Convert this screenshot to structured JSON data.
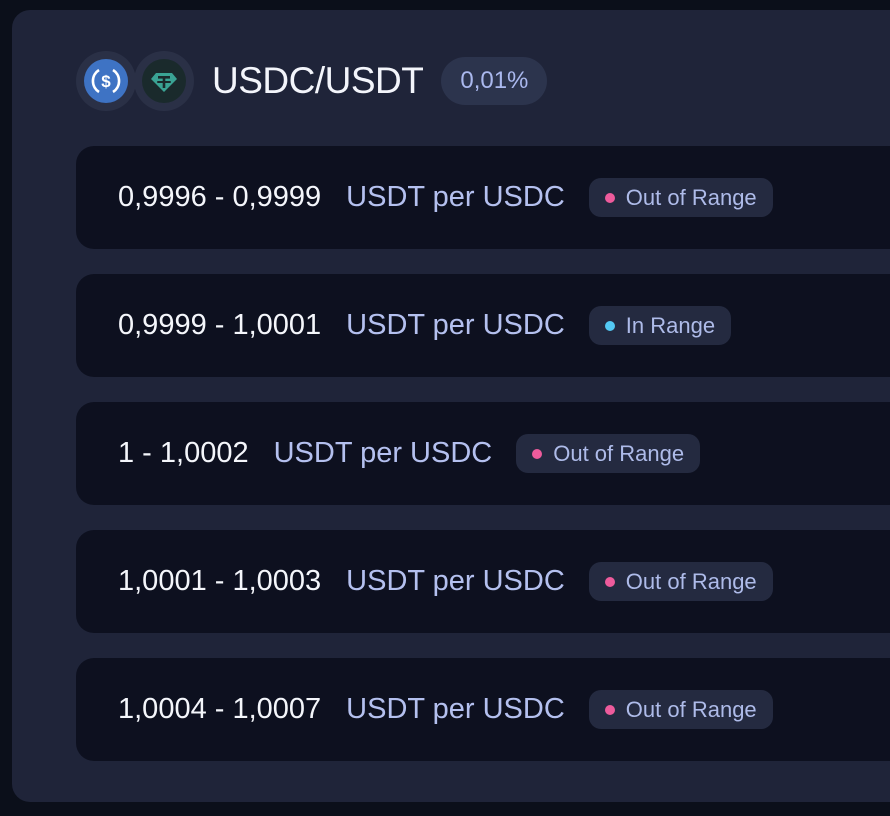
{
  "pool": {
    "title": "USDC/USDT",
    "fee": "0,01%",
    "tokens": [
      {
        "symbol": "USDC",
        "icon": "usdc-icon",
        "color": "#3e73c4"
      },
      {
        "symbol": "USDT",
        "icon": "usdt-icon",
        "color": "#3aa394"
      }
    ]
  },
  "status_colors": {
    "out": "#ee5b9c",
    "in": "#53c8f3"
  },
  "positions": [
    {
      "range": "0,9996 - 0,9999",
      "unit": "USDT per USDC",
      "status": "Out of Range",
      "in_range": false
    },
    {
      "range": "0,9999 - 1,0001",
      "unit": "USDT per USDC",
      "status": "In Range",
      "in_range": true
    },
    {
      "range": "1 - 1,0002",
      "unit": "USDT per USDC",
      "status": "Out of Range",
      "in_range": false
    },
    {
      "range": "1,0001 - 1,0003",
      "unit": "USDT per USDC",
      "status": "Out of Range",
      "in_range": false
    },
    {
      "range": "1,0004 - 1,0007",
      "unit": "USDT per USDC",
      "status": "Out of Range",
      "in_range": false
    }
  ]
}
